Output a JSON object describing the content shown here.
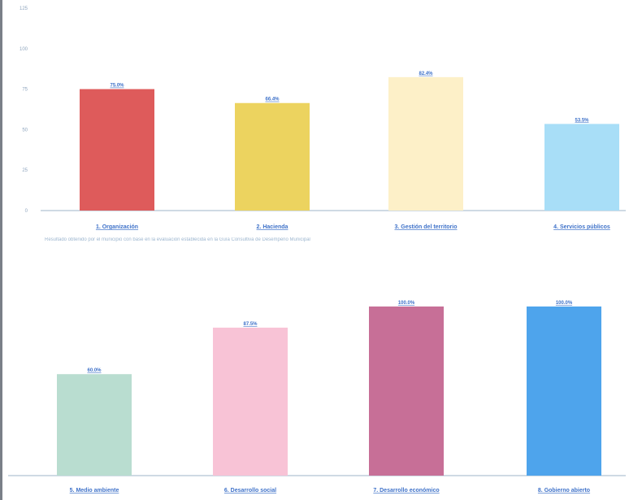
{
  "chart_data": [
    {
      "type": "bar",
      "title": "",
      "xlabel": "",
      "ylabel": "",
      "ylim": [
        0,
        125
      ],
      "yticks": [
        0,
        25,
        50,
        75,
        100,
        125
      ],
      "grid": false,
      "categories": [
        "1. Organización",
        "2. Hacienda",
        "3. Gestión del territorio",
        "4. Servicios públicos"
      ],
      "values": [
        75.0,
        66.4,
        82.4,
        53.5
      ],
      "value_labels": [
        "75.0%",
        "66.4%",
        "82.4%",
        "53.5%"
      ],
      "colors": [
        "#de5b5b",
        "#ecd35f",
        "#fdf0c8",
        "#a8def7"
      ],
      "caption": "Resultado obtenido por el municipio con base en la evaluación establecida en la Guía Consultiva de Desempeño Municipal"
    },
    {
      "type": "bar",
      "title": "",
      "xlabel": "",
      "ylabel": "",
      "ylim": [
        0,
        125
      ],
      "grid": false,
      "categories": [
        "5. Medio ambiente",
        "6. Desarrollo social",
        "7. Desarrollo económico",
        "8. Gobierno abierto"
      ],
      "values": [
        60.0,
        87.5,
        100.0,
        100.0
      ],
      "value_labels": [
        "60.0%",
        "87.5%",
        "100.0%",
        "100.0%"
      ],
      "colors": [
        "#b9ddd0",
        "#f8c3d6",
        "#c76f97",
        "#4ea4ec"
      ]
    }
  ]
}
